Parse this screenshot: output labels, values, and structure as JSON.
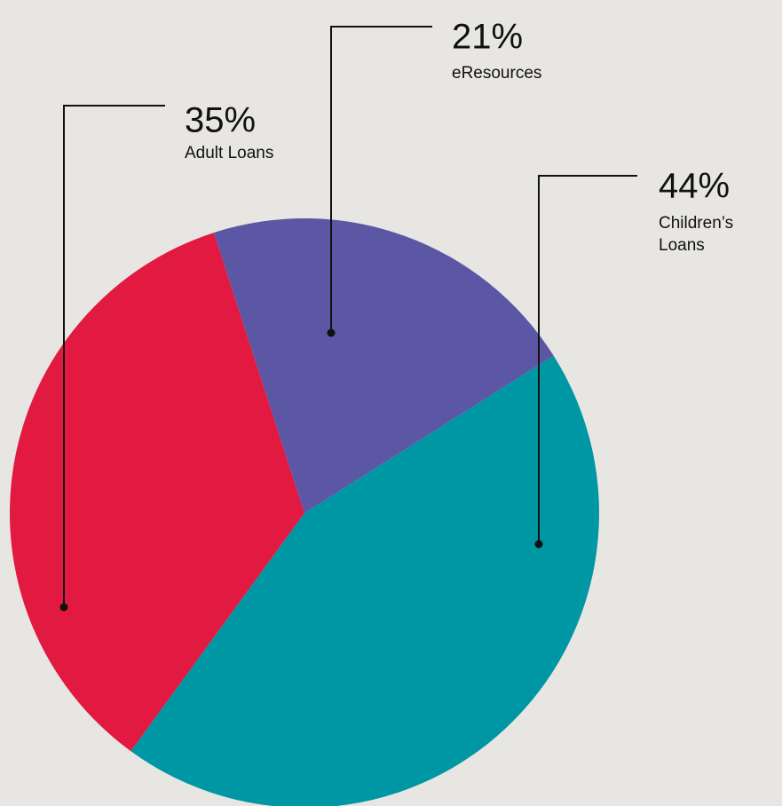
{
  "chart_data": {
    "type": "pie",
    "slices": [
      {
        "label": "Children’s Loans",
        "label_lines": [
          "Children’s",
          "Loans"
        ],
        "value": 44,
        "value_text": "44%",
        "color": "#0097a4"
      },
      {
        "label": "Adult Loans",
        "label_lines": [
          "Adult Loans"
        ],
        "value": 35,
        "value_text": "35%",
        "color": "#e21940"
      },
      {
        "label": "eResources",
        "label_lines": [
          "eResources"
        ],
        "value": 21,
        "value_text": "21%",
        "color": "#5b57a5"
      }
    ],
    "title": "",
    "legend": "none",
    "label_style": "callout-leader-lines"
  },
  "colors": {
    "background": "#e8e6e3",
    "text": "#111111"
  }
}
